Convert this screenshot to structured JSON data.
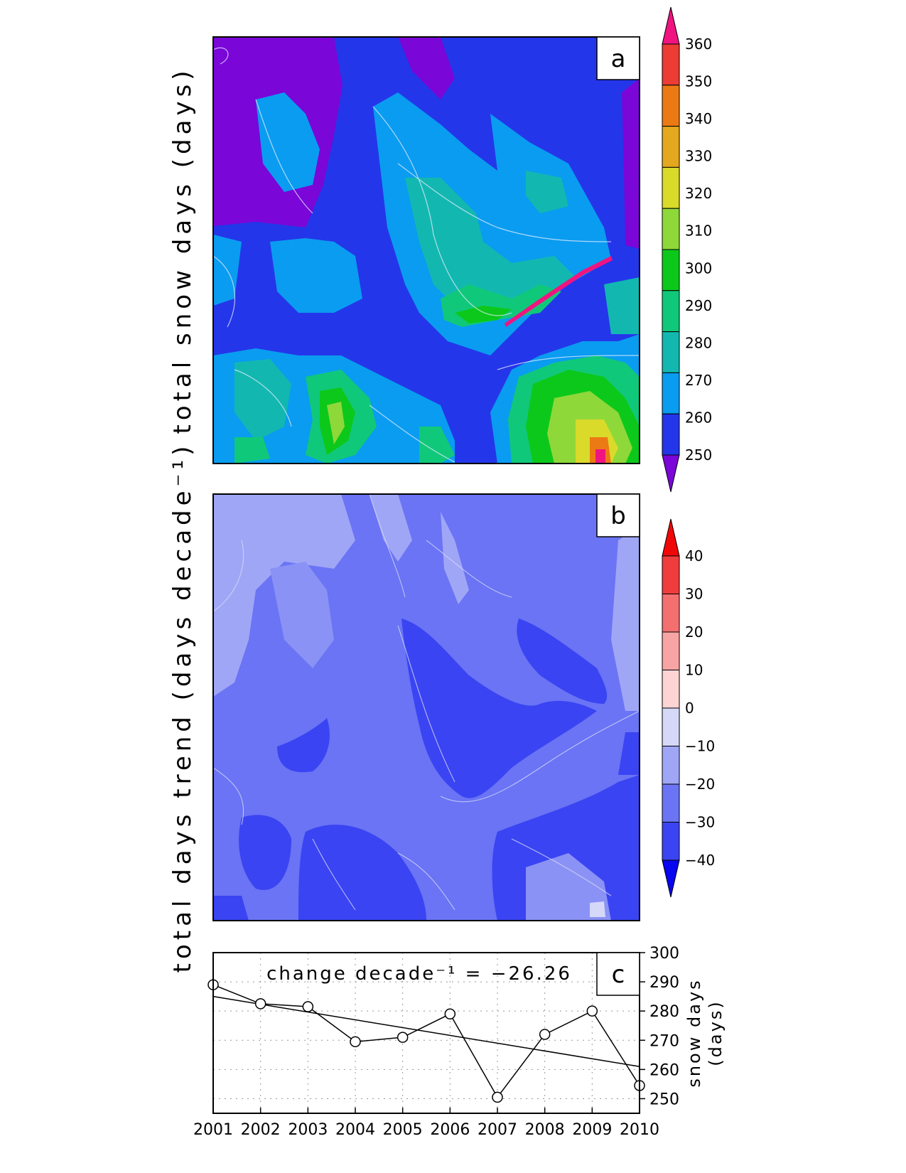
{
  "colors": {
    "a_levels": [
      "#7a06d8",
      "#2436ea",
      "#0a9cf0",
      "#12b8b0",
      "#10c87a",
      "#0cc81a",
      "#8ed83a",
      "#dada2a",
      "#e4a81e",
      "#ec7a14",
      "#ec3c34",
      "#f01480"
    ],
    "b_levels": [
      "#0606f0",
      "#3a44f2",
      "#6a74f4",
      "#a0a6f6",
      "#d6d8f8",
      "#fcd4d4",
      "#f8a4a4",
      "#f47070",
      "#f03c3c",
      "#f00808"
    ],
    "b_map_base": "#6a74f4",
    "grid": "#999999"
  },
  "chart_data": [
    {
      "id": "a",
      "type": "heatmap",
      "panel_label": "a",
      "ylabel": "total snow days (days)",
      "colorbar_ticks": [
        250,
        260,
        270,
        280,
        290,
        300,
        310,
        320,
        330,
        340,
        350,
        360
      ]
    },
    {
      "id": "b",
      "type": "heatmap",
      "panel_label": "b",
      "ylabel": "total days trend (days decade⁻¹)",
      "colorbar_ticks": [
        -40,
        -30,
        -20,
        -10,
        0,
        10,
        20,
        30,
        40
      ]
    },
    {
      "id": "c",
      "type": "line",
      "panel_label": "c",
      "annotation": "change decade⁻¹ = −26.26",
      "ylabel_line1": "snow days",
      "ylabel_line2": "(days)",
      "x": [
        2001,
        2002,
        2003,
        2004,
        2005,
        2006,
        2007,
        2008,
        2009,
        2010
      ],
      "series": [
        {
          "values": [
            289,
            282.5,
            281.5,
            269.5,
            271,
            279,
            250.5,
            272,
            280,
            254.5
          ]
        }
      ],
      "trend": {
        "start": 285,
        "end": 261
      },
      "xlim": [
        2001,
        2010
      ],
      "ylim": [
        245,
        300
      ],
      "yticks": [
        250,
        260,
        270,
        280,
        290,
        300
      ],
      "grid": true
    }
  ]
}
